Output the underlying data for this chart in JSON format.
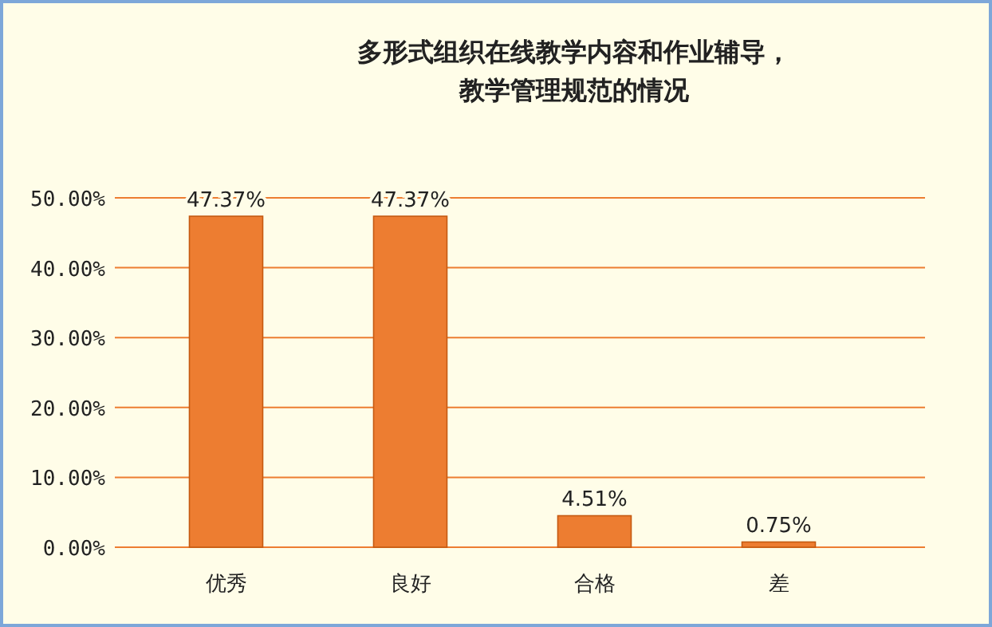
{
  "chart_data": {
    "type": "bar",
    "title": "多形式组织在线教学内容和作业辅导，教学管理规范的情况",
    "categories": [
      "优秀",
      "良好",
      "合格",
      "差"
    ],
    "values": [
      47.37,
      47.37,
      4.51,
      0.75
    ],
    "value_labels": [
      "47.37%",
      "47.37%",
      "4.51%",
      "0.75%"
    ],
    "color": "#ed7d31",
    "ylim": [
      0,
      50
    ],
    "yticks": [
      {
        "value": 0,
        "label": "0.00%"
      },
      {
        "value": 10,
        "label": "10.00%"
      },
      {
        "value": 20,
        "label": "20.00%"
      },
      {
        "value": 30,
        "label": "30.00%"
      },
      {
        "value": 40,
        "label": "40.00%"
      },
      {
        "value": 50,
        "label": "50.00%"
      }
    ],
    "grid": "y"
  }
}
